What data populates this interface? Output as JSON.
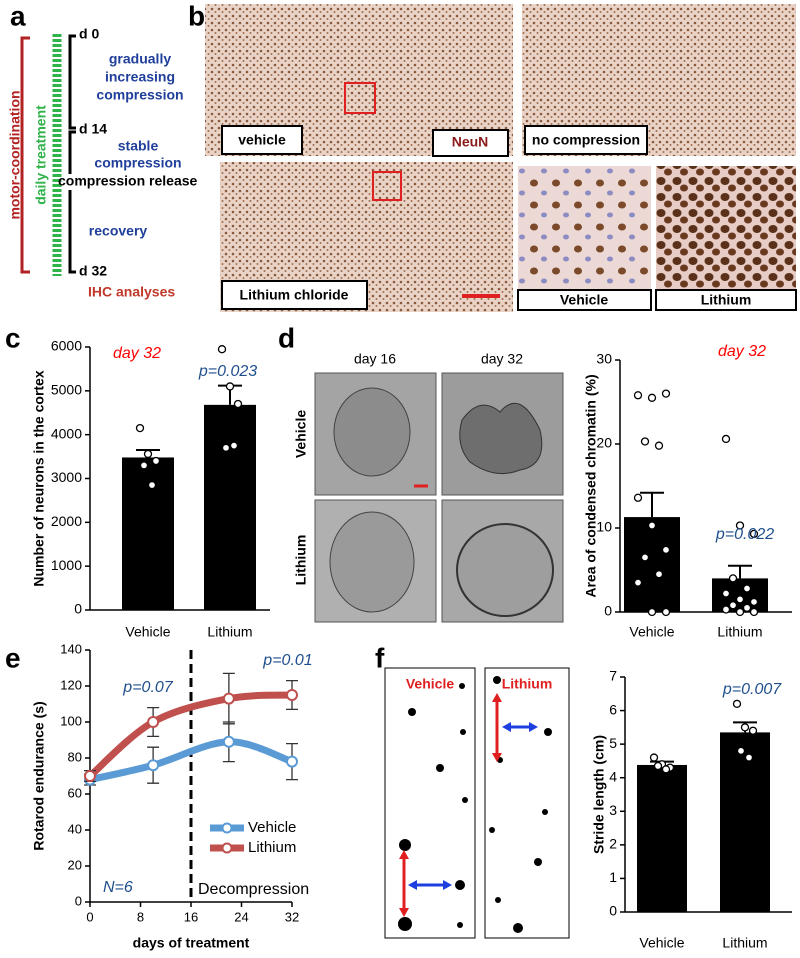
{
  "panel_labels": [
    "a",
    "b",
    "c",
    "d",
    "e",
    "f"
  ],
  "timeline": {
    "days": [
      "d 0",
      "d 14",
      "d 32"
    ],
    "phases": [
      [
        "gradually",
        "increasing",
        "compression"
      ],
      [
        "stable",
        "compression"
      ],
      [
        "recovery"
      ]
    ],
    "release": "compression release",
    "motor": "motor-coordination",
    "treatment": "daily treatment",
    "ihc": "IHC analyses"
  },
  "histology": {
    "labels": [
      "vehicle",
      "NeuN",
      "no compression",
      "Lithium chloride",
      "Vehicle",
      "Lithium"
    ]
  },
  "micrographs": {
    "columns": [
      "day 16",
      "day 32"
    ],
    "rows": [
      "Vehicle",
      "Lithium"
    ]
  },
  "footprints": {
    "labels": [
      "Vehicle",
      "Lithium"
    ]
  },
  "chart_data": [
    {
      "type": "bar",
      "categories": [
        "Vehicle",
        "Lithium"
      ],
      "values": [
        3480,
        4680
      ],
      "errors": [
        170,
        440
      ],
      "points": [
        [
          4150,
          3560,
          3400,
          3300,
          2850
        ],
        [
          5950,
          5100,
          4700,
          3700,
          3750
        ]
      ],
      "color": "#000000",
      "ylabel": "Number of neurons in the cortex",
      "ylim": [
        0,
        6000
      ],
      "yticks": [
        0,
        1000,
        2000,
        3000,
        4000,
        5000,
        6000
      ],
      "annotations": [
        {
          "text": "day 32",
          "color": "#ff0000"
        },
        {
          "text": "p=0.023",
          "color": "#1f4e8c"
        }
      ]
    },
    {
      "type": "bar",
      "categories": [
        "Vehicle",
        "Lithium"
      ],
      "values": [
        11.3,
        4
      ],
      "errors": [
        2.9,
        1.5
      ],
      "points": [
        [
          25.8,
          25.5,
          26,
          20.3,
          19.8,
          13.6,
          10.3,
          7.4,
          6.5,
          4.5,
          3.5,
          0,
          0
        ],
        [
          20.6,
          10.3,
          9.3,
          4,
          2.8,
          2.2,
          1.5,
          1.2,
          0.8,
          0.5,
          0.3,
          0,
          0
        ]
      ],
      "color": "#000000",
      "ylabel": "Area of condensed chromatin (%)",
      "ylim": [
        0,
        30
      ],
      "yticks": [
        0,
        10,
        20,
        30
      ],
      "annotations": [
        {
          "text": "day 32",
          "color": "#ff0000"
        },
        {
          "text": "p=0.022",
          "color": "#1f4e8c"
        }
      ]
    },
    {
      "type": "line",
      "x": [
        0,
        10,
        22,
        32
      ],
      "xlim": [
        0,
        32
      ],
      "xticks": [
        0,
        8,
        16,
        24,
        32
      ],
      "ylim": [
        0,
        140
      ],
      "yticks": [
        0,
        20,
        40,
        60,
        80,
        100,
        120,
        140
      ],
      "xlabel": "days of treatment",
      "ylabel": "Rotarod endurance (s)",
      "vline": 16,
      "legend": "center right",
      "series": [
        {
          "name": "Vehicle",
          "color": "#5b9bd5",
          "values": [
            68,
            76,
            89,
            78
          ],
          "errors": [
            3,
            10,
            11,
            10
          ]
        },
        {
          "name": "Lithium",
          "color": "#c0504d",
          "values": [
            70,
            100,
            113,
            115
          ],
          "errors": [
            3,
            8,
            14,
            8
          ]
        }
      ],
      "annotations": [
        {
          "text": "p=0.07",
          "color": "#1f4e8c"
        },
        {
          "text": "p=0.01",
          "color": "#1f4e8c"
        },
        {
          "text": "N=6",
          "color": "#1f4e8c"
        },
        {
          "text": "Decompression",
          "color": "#000000"
        }
      ]
    },
    {
      "type": "bar",
      "categories": [
        "Vehicle",
        "Lithium"
      ],
      "values": [
        4.38,
        5.35
      ],
      "errors": [
        0.1,
        0.3
      ],
      "points": [
        [
          4.6,
          4.4,
          4.3,
          4.35,
          4.25
        ],
        [
          6.2,
          5.5,
          5.4,
          4.8,
          4.6
        ]
      ],
      "color": "#000000",
      "ylabel": "Stride length (cm)",
      "ylim": [
        0,
        7
      ],
      "yticks": [
        0,
        1,
        2,
        3,
        4,
        5,
        6,
        7
      ],
      "annotations": [
        {
          "text": "p=0.007",
          "color": "#1f4e8c"
        }
      ]
    }
  ]
}
